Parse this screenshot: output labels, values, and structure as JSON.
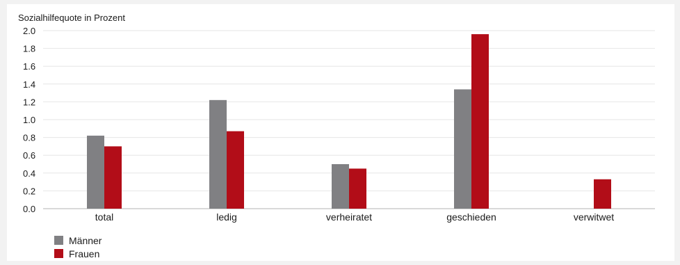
{
  "chart_data": {
    "type": "bar",
    "ylabel": "Sozialhilfequote in Prozent",
    "categories": [
      "total",
      "ledig",
      "verheiratet",
      "geschieden",
      "verwitwet"
    ],
    "series": [
      {
        "name": "Männer",
        "color": "#808083",
        "values": [
          0.82,
          1.22,
          0.5,
          1.34,
          null
        ]
      },
      {
        "name": "Frauen",
        "color": "#b20d18",
        "values": [
          0.7,
          0.87,
          0.45,
          1.96,
          0.33
        ]
      }
    ],
    "ylim": [
      0,
      2.0
    ],
    "yticks": [
      "0.0",
      "0.2",
      "0.4",
      "0.6",
      "0.8",
      "1.0",
      "1.2",
      "1.4",
      "1.6",
      "1.8",
      "2.0"
    ],
    "grid": true,
    "legend_position": "bottom-left"
  }
}
